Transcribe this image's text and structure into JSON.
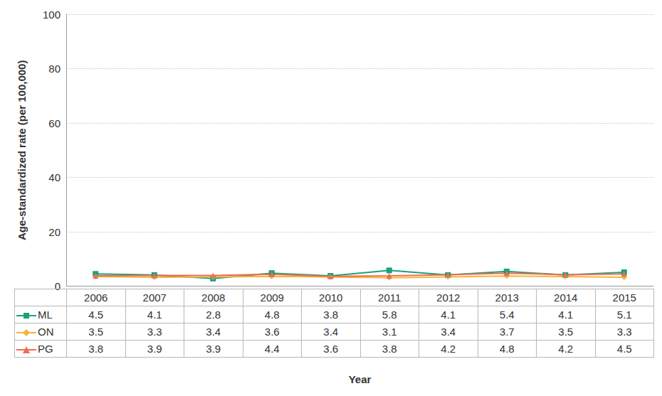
{
  "chart_data": {
    "type": "line",
    "x_label": "Year",
    "y_label": "Age-standardized rate (per 100,000)",
    "categories": [
      "2006",
      "2007",
      "2008",
      "2009",
      "2010",
      "2011",
      "2012",
      "2013",
      "2014",
      "2015"
    ],
    "series": [
      {
        "name": "ML",
        "color": "#17a37b",
        "marker": "square",
        "line_style": "solid",
        "values": [
          4.5,
          4.1,
          2.8,
          4.8,
          3.8,
          5.8,
          4.1,
          5.4,
          4.1,
          5.1
        ]
      },
      {
        "name": "ON",
        "color": "#f5b43a",
        "marker": "diamond",
        "line_style": "solid",
        "values": [
          3.5,
          3.3,
          3.4,
          3.6,
          3.4,
          3.1,
          3.4,
          3.7,
          3.5,
          3.3
        ]
      },
      {
        "name": "PG",
        "color": "#f26b4f",
        "marker": "triangle",
        "line_style": "solid",
        "values": [
          3.8,
          3.9,
          3.9,
          4.4,
          3.6,
          3.8,
          4.2,
          4.8,
          4.2,
          4.5
        ]
      }
    ],
    "ylim": [
      0,
      100
    ],
    "yticks": [
      0,
      20,
      40,
      60,
      80,
      100
    ],
    "grid": true
  }
}
